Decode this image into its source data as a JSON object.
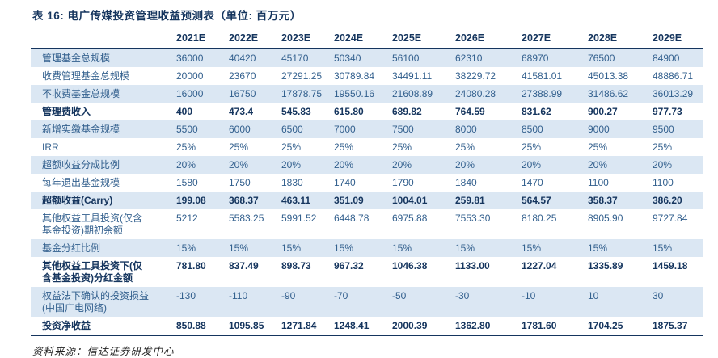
{
  "title": "表 16: 电广传媒投资管理收益预测表（单位: 百万元）",
  "source_note": "资料来源：信达证券研发中心",
  "colors": {
    "accent_navy": "#15355e",
    "body_text_blue": "#33608e",
    "row_shade_blue": "#dbe7f3"
  },
  "table": {
    "columns": [
      "2021E",
      "2022E",
      "2023E",
      "2024E",
      "2025E",
      "2026E",
      "2027E",
      "2028E",
      "2029E"
    ],
    "rows": [
      {
        "label": "管理基金总规模",
        "bold": false,
        "shaded": true,
        "values": [
          "36000",
          "40420",
          "45170",
          "50340",
          "56100",
          "62310",
          "68970",
          "76500",
          "84900"
        ]
      },
      {
        "label": "收费管理基金总规模",
        "bold": false,
        "shaded": false,
        "values": [
          "20000",
          "23670",
          "27291.25",
          "30789.84",
          "34491.11",
          "38229.72",
          "41581.01",
          "45013.38",
          "48886.71"
        ]
      },
      {
        "label": "不收费基金总规模",
        "bold": false,
        "shaded": true,
        "values": [
          "16000",
          "16750",
          "17878.75",
          "19550.16",
          "21608.89",
          "24080.28",
          "27388.99",
          "31486.62",
          "36013.29"
        ]
      },
      {
        "label": "管理费收入",
        "bold": true,
        "shaded": false,
        "values": [
          "400",
          "473.4",
          "545.83",
          "615.80",
          "689.82",
          "764.59",
          "831.62",
          "900.27",
          "977.73"
        ]
      },
      {
        "label": "新增实缴基金规模",
        "bold": false,
        "shaded": true,
        "values": [
          "5500",
          "6000",
          "6500",
          "7000",
          "7500",
          "8000",
          "8500",
          "9000",
          "9500"
        ]
      },
      {
        "label": "IRR",
        "bold": false,
        "shaded": false,
        "values": [
          "25%",
          "25%",
          "25%",
          "25%",
          "25%",
          "25%",
          "25%",
          "25%",
          "25%"
        ]
      },
      {
        "label": "超额收益分成比例",
        "bold": false,
        "shaded": true,
        "values": [
          "20%",
          "20%",
          "20%",
          "20%",
          "20%",
          "20%",
          "20%",
          "20%",
          "20%"
        ]
      },
      {
        "label": "每年退出基金规模",
        "bold": false,
        "shaded": false,
        "values": [
          "1580",
          "1750",
          "1830",
          "1740",
          "1790",
          "1840",
          "1470",
          "1100",
          "1100"
        ]
      },
      {
        "label": "超额收益(Carry)",
        "bold": true,
        "shaded": true,
        "values": [
          "199.08",
          "368.37",
          "463.11",
          "351.09",
          "1004.01",
          "259.81",
          "564.57",
          "358.37",
          "386.20"
        ]
      },
      {
        "label": "其他权益工具投资(仅含\n基金投资)期初余额",
        "bold": false,
        "shaded": false,
        "values": [
          "5212",
          "5583.25",
          "5991.52",
          "6448.78",
          "6975.88",
          "7553.30",
          "8180.25",
          "8905.90",
          "9727.84"
        ]
      },
      {
        "label": "基金分红比例",
        "bold": false,
        "shaded": true,
        "values": [
          "15%",
          "15%",
          "15%",
          "15%",
          "15%",
          "15%",
          "15%",
          "15%",
          "15%"
        ]
      },
      {
        "label": "其他权益工具投资下(仅\n含基金投资)分红金额",
        "bold": true,
        "shaded": false,
        "values": [
          "781.80",
          "837.49",
          "898.73",
          "967.32",
          "1046.38",
          "1133.00",
          "1227.04",
          "1335.89",
          "1459.18"
        ]
      },
      {
        "label": "权益法下确认的投资损益\n(中国广电网络)",
        "bold": false,
        "shaded": true,
        "values": [
          "-130",
          "-110",
          "-90",
          "-70",
          "-50",
          "-30",
          "-10",
          "10",
          "30"
        ]
      },
      {
        "label": "投资净收益",
        "bold": true,
        "shaded": false,
        "values": [
          "850.88",
          "1095.85",
          "1271.84",
          "1248.41",
          "2000.39",
          "1362.80",
          "1781.60",
          "1704.25",
          "1875.37"
        ]
      }
    ]
  }
}
